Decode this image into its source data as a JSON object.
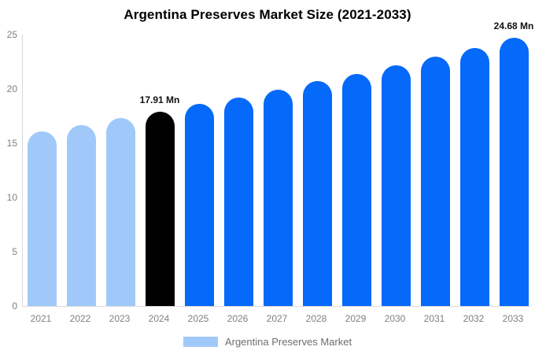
{
  "header": {
    "title": "Argentina Preserves Market Size (2021-2033)"
  },
  "legend": {
    "label": "Argentina Preserves Market",
    "swatch_color": "#a0c9fa"
  },
  "colors": {
    "historical_light_blue": "#a0c9fa",
    "base_year_black": "#000000",
    "forecast_blue": "#0569fa",
    "axis_line": "#d9d9d9",
    "tick_text": "#808080",
    "legend_text": "#6e6e6e",
    "title_text": "#000000",
    "annotation_text": "#111111"
  },
  "chart_data": {
    "type": "bar",
    "title": "Argentina Preserves Market Size (2021-2033)",
    "xlabel": "",
    "ylabel": "",
    "unit": "Mn",
    "categories": [
      "2021",
      "2022",
      "2023",
      "2024",
      "2025",
      "2026",
      "2027",
      "2028",
      "2029",
      "2030",
      "2031",
      "2032",
      "2033"
    ],
    "values": [
      16.1,
      16.7,
      17.3,
      17.91,
      18.6,
      19.2,
      19.9,
      20.7,
      21.4,
      22.2,
      23.0,
      23.8,
      24.68
    ],
    "bar_colors": [
      "#a0c9fa",
      "#a0c9fa",
      "#a0c9fa",
      "#000000",
      "#0569fa",
      "#0569fa",
      "#0569fa",
      "#0569fa",
      "#0569fa",
      "#0569fa",
      "#0569fa",
      "#0569fa",
      "#0569fa"
    ],
    "ylim": [
      0,
      25
    ],
    "yticks": [
      0,
      5,
      10,
      15,
      20,
      25
    ],
    "grid": false,
    "legend_position": "bottom",
    "legend_entries": [
      "Argentina Preserves Market"
    ],
    "annotations": [
      {
        "index": 3,
        "text": "17.91 Mn"
      },
      {
        "index": 12,
        "text": "24.68 Mn"
      }
    ]
  }
}
